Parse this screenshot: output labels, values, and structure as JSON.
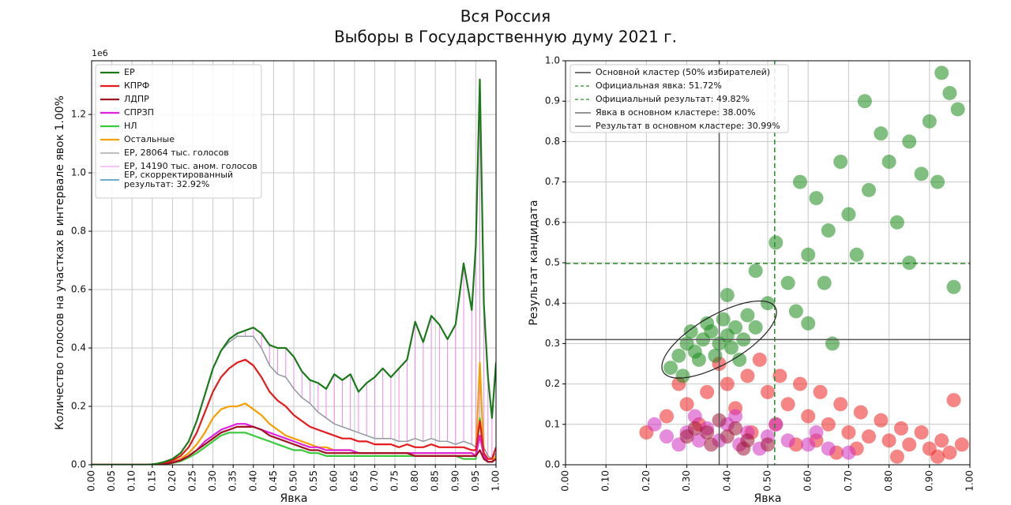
{
  "title": "Вся Россия",
  "subtitle": "Выборы в Государственную думу 2021 г.",
  "chart_data": [
    {
      "type": "line",
      "xlabel": "Явка",
      "ylabel": "Количество голосов на участках в интервале явок 1.00%",
      "offset_label": "1e6",
      "xlim": [
        0,
        1
      ],
      "ylim": [
        0,
        1.384
      ],
      "grid": true,
      "legend": "upper left",
      "xticks": [
        {
          "value": 0,
          "label": "0.00"
        },
        0.05,
        {
          "value": 0.1,
          "label": "0.10"
        },
        0.15,
        {
          "value": 0.2,
          "label": "0.20"
        },
        0.25,
        {
          "value": 0.3,
          "label": "0.30"
        },
        0.35,
        {
          "value": 0.4,
          "label": "0.40"
        },
        0.45,
        {
          "value": 0.5,
          "label": "0.50"
        },
        0.55,
        {
          "value": 0.6,
          "label": "0.60"
        },
        0.65,
        {
          "value": 0.7,
          "label": "0.70"
        },
        0.75,
        {
          "value": 0.8,
          "label": "0.80"
        },
        0.85,
        {
          "value": 0.9,
          "label": "0.90"
        },
        0.95,
        {
          "value": 1,
          "label": "1.00"
        }
      ],
      "yticks": [
        {
          "value": 0,
          "label": "0.0"
        },
        0.2,
        0.4,
        0.6,
        0.8,
        {
          "value": 1,
          "label": "1.0"
        },
        1.2
      ],
      "x": [
        0,
        0.02,
        0.04,
        0.06,
        0.08,
        0.1,
        0.12,
        0.14,
        0.16,
        0.18,
        0.2,
        0.22,
        0.24,
        0.26,
        0.28,
        0.3,
        0.32,
        0.34,
        0.36,
        0.38,
        0.4,
        0.42,
        0.44,
        0.46,
        0.48,
        0.5,
        0.52,
        0.54,
        0.56,
        0.58,
        0.6,
        0.62,
        0.64,
        0.66,
        0.68,
        0.7,
        0.72,
        0.74,
        0.76,
        0.78,
        0.8,
        0.82,
        0.84,
        0.86,
        0.88,
        0.9,
        0.92,
        0.94,
        0.95,
        0.96,
        0.97,
        0.98,
        0.99,
        1.0
      ],
      "series": [
        {
          "name": "ЕР",
          "color": "#1a7a1a",
          "width": 2.2,
          "values": [
            0,
            0,
            0,
            0,
            0,
            0,
            0,
            0,
            0.003,
            0.01,
            0.02,
            0.04,
            0.08,
            0.15,
            0.24,
            0.33,
            0.39,
            0.43,
            0.45,
            0.46,
            0.47,
            0.45,
            0.41,
            0.4,
            0.4,
            0.37,
            0.32,
            0.29,
            0.28,
            0.26,
            0.31,
            0.29,
            0.31,
            0.25,
            0.28,
            0.3,
            0.33,
            0.3,
            0.33,
            0.36,
            0.49,
            0.42,
            0.51,
            0.48,
            0.43,
            0.48,
            0.69,
            0.53,
            0.75,
            1.32,
            0.55,
            0.3,
            0.16,
            0.35
          ]
        },
        {
          "name": "КПРФ",
          "color": "#e41a1c",
          "width": 2.2,
          "values": [
            0,
            0,
            0,
            0,
            0,
            0,
            0,
            0,
            0.003,
            0.008,
            0.015,
            0.03,
            0.06,
            0.11,
            0.18,
            0.25,
            0.3,
            0.33,
            0.35,
            0.36,
            0.34,
            0.3,
            0.25,
            0.22,
            0.2,
            0.17,
            0.15,
            0.13,
            0.12,
            0.11,
            0.1,
            0.09,
            0.09,
            0.08,
            0.08,
            0.07,
            0.07,
            0.07,
            0.06,
            0.07,
            0.06,
            0.06,
            0.07,
            0.06,
            0.06,
            0.06,
            0.06,
            0.05,
            0.05,
            0.15,
            0.04,
            0.02,
            0.02,
            0.06
          ]
        },
        {
          "name": "ЛДПР",
          "color": "#a01020",
          "width": 2.2,
          "values": [
            0,
            0,
            0,
            0,
            0,
            0,
            0,
            0,
            0.001,
            0.003,
            0.007,
            0.015,
            0.03,
            0.05,
            0.07,
            0.09,
            0.11,
            0.12,
            0.13,
            0.13,
            0.13,
            0.12,
            0.1,
            0.09,
            0.08,
            0.07,
            0.06,
            0.05,
            0.05,
            0.04,
            0.04,
            0.04,
            0.04,
            0.04,
            0.04,
            0.04,
            0.04,
            0.04,
            0.04,
            0.04,
            0.03,
            0.03,
            0.03,
            0.03,
            0.03,
            0.03,
            0.03,
            0.03,
            0.03,
            0.05,
            0.02,
            0.01,
            0.01,
            0.02
          ]
        },
        {
          "name": "СПРЗП",
          "color": "#e020e0",
          "width": 2.2,
          "values": [
            0,
            0,
            0,
            0,
            0,
            0,
            0,
            0,
            0.001,
            0.003,
            0.008,
            0.016,
            0.03,
            0.05,
            0.08,
            0.1,
            0.12,
            0.13,
            0.14,
            0.14,
            0.13,
            0.12,
            0.11,
            0.1,
            0.09,
            0.08,
            0.07,
            0.06,
            0.06,
            0.05,
            0.05,
            0.05,
            0.05,
            0.04,
            0.04,
            0.04,
            0.04,
            0.04,
            0.04,
            0.04,
            0.04,
            0.04,
            0.04,
            0.04,
            0.04,
            0.04,
            0.04,
            0.04,
            0.03,
            0.1,
            0.03,
            0.01,
            0.01,
            0.02
          ]
        },
        {
          "name": "НЛ",
          "color": "#3cc83c",
          "width": 2.2,
          "values": [
            0,
            0,
            0,
            0,
            0,
            0,
            0,
            0,
            0.001,
            0.002,
            0.006,
            0.012,
            0.025,
            0.04,
            0.06,
            0.08,
            0.1,
            0.11,
            0.11,
            0.11,
            0.1,
            0.09,
            0.08,
            0.07,
            0.06,
            0.05,
            0.05,
            0.04,
            0.04,
            0.03,
            0.03,
            0.03,
            0.03,
            0.03,
            0.03,
            0.03,
            0.03,
            0.03,
            0.03,
            0.03,
            0.03,
            0.03,
            0.03,
            0.03,
            0.03,
            0.03,
            0.02,
            0.02,
            0.02,
            0.16,
            0.02,
            0.01,
            0.01,
            0.02
          ]
        },
        {
          "name": "Остальные",
          "color": "#f5a000",
          "width": 2.2,
          "values": [
            0,
            0,
            0,
            0,
            0,
            0,
            0,
            0,
            0.002,
            0.005,
            0.01,
            0.02,
            0.04,
            0.07,
            0.11,
            0.16,
            0.19,
            0.2,
            0.2,
            0.21,
            0.19,
            0.17,
            0.14,
            0.12,
            0.1,
            0.09,
            0.08,
            0.07,
            0.06,
            0.06,
            0.05,
            0.05,
            0.05,
            0.04,
            0.04,
            0.04,
            0.04,
            0.04,
            0.04,
            0.04,
            0.04,
            0.04,
            0.04,
            0.04,
            0.04,
            0.04,
            0.04,
            0.04,
            0.03,
            0.35,
            0.03,
            0.01,
            0.01,
            0.03
          ]
        },
        {
          "name": "ЕР, 28064 тыс. голосов",
          "color": "#999999",
          "width": 1.3,
          "values": [
            0,
            0,
            0,
            0,
            0,
            0,
            0,
            0,
            0.003,
            0.01,
            0.02,
            0.04,
            0.08,
            0.15,
            0.24,
            0.33,
            0.39,
            0.42,
            0.44,
            0.44,
            0.44,
            0.4,
            0.34,
            0.31,
            0.3,
            0.26,
            0.23,
            0.21,
            0.18,
            0.16,
            0.14,
            0.13,
            0.12,
            0.11,
            0.1,
            0.09,
            0.09,
            0.09,
            0.08,
            0.08,
            0.09,
            0.08,
            0.09,
            0.08,
            0.08,
            0.07,
            0.08,
            0.07,
            0.06,
            0.16,
            0.06,
            0.03,
            0.02,
            0.04
          ]
        },
        {
          "name": "ЕР, 14190 тыс. аном. голосов",
          "color": "#ee88ee",
          "style": "vlines",
          "stacked_on": "ЕР, 28064 тыс. голосов",
          "values": [
            0,
            0,
            0,
            0,
            0,
            0,
            0,
            0,
            0,
            0,
            0,
            0,
            0,
            0,
            0,
            0,
            0,
            0.01,
            0.01,
            0.02,
            0.03,
            0.05,
            0.07,
            0.09,
            0.1,
            0.11,
            0.09,
            0.08,
            0.1,
            0.1,
            0.17,
            0.16,
            0.19,
            0.14,
            0.18,
            0.21,
            0.24,
            0.21,
            0.25,
            0.28,
            0.4,
            0.34,
            0.42,
            0.4,
            0.35,
            0.41,
            0.61,
            0.46,
            0.69,
            1.16,
            0.49,
            0.27,
            0.14,
            0.31
          ]
        },
        {
          "name": "ЕР, скорректированный\nрезультат: 32.92%",
          "color": "#1f77b4",
          "width": 1.3,
          "values": [
            0,
            0,
            0,
            0,
            0,
            0,
            0,
            0,
            0.003,
            0.01,
            0.02,
            0.04,
            0.08,
            0.15,
            0.24,
            0.33,
            0.39,
            0.42,
            0.44,
            0.44,
            0.44,
            0.4,
            0.34,
            0.31,
            0.3,
            0.26,
            0.23,
            0.21,
            0.18,
            0.16,
            0.14,
            0.13,
            0.12,
            0.11,
            0.1,
            0.09,
            0.09,
            0.09,
            0.08,
            0.08,
            0.09,
            0.08,
            0.09,
            0.08,
            0.08,
            0.07,
            0.08,
            0.07,
            0.06,
            0.16,
            0.06,
            0.03,
            0.02,
            0.04
          ]
        }
      ]
    },
    {
      "type": "scatter",
      "xlabel": "Явка",
      "ylabel": "Результат кандидата",
      "xlim": [
        0,
        1
      ],
      "ylim": [
        0,
        1
      ],
      "grid": true,
      "legend": "upper left",
      "xticks": [
        {
          "value": 0,
          "label": "0.00"
        },
        {
          "value": 0.1,
          "label": "0.10"
        },
        {
          "value": 0.2,
          "label": "0.20"
        },
        {
          "value": 0.3,
          "label": "0.30"
        },
        {
          "value": 0.4,
          "label": "0.40"
        },
        {
          "value": 0.5,
          "label": "0.50"
        },
        {
          "value": 0.6,
          "label": "0.60"
        },
        {
          "value": 0.7,
          "label": "0.70"
        },
        {
          "value": 0.8,
          "label": "0.80"
        },
        {
          "value": 0.9,
          "label": "0.90"
        },
        {
          "value": 1,
          "label": "1.00"
        }
      ],
      "yticks": [
        {
          "value": 0,
          "label": "0.0"
        },
        0.1,
        0.2,
        0.3,
        0.4,
        0.5,
        0.6,
        0.7,
        0.8,
        0.9,
        {
          "value": 1,
          "label": "1.0"
        }
      ],
      "series": [
        {
          "color": "#ee2020",
          "x": [
            0.3,
            0.35,
            0.4,
            0.45,
            0.5,
            0.55,
            0.6,
            0.65,
            0.7,
            0.75,
            0.8,
            0.85,
            0.9,
            0.95,
            0.98,
            0.25,
            0.28,
            0.38,
            0.48,
            0.53,
            0.58,
            0.63,
            0.68,
            0.73,
            0.78,
            0.83,
            0.88,
            0.93,
            0.42,
            0.52,
            0.62,
            0.72,
            0.82,
            0.92,
            0.2,
            0.33,
            0.46,
            0.57,
            0.67,
            0.96
          ],
          "values": [
            0.15,
            0.18,
            0.2,
            0.22,
            0.18,
            0.15,
            0.12,
            0.1,
            0.08,
            0.07,
            0.06,
            0.05,
            0.04,
            0.03,
            0.05,
            0.12,
            0.2,
            0.25,
            0.26,
            0.22,
            0.2,
            0.18,
            0.15,
            0.13,
            0.11,
            0.09,
            0.08,
            0.06,
            0.14,
            0.1,
            0.06,
            0.04,
            0.02,
            0.02,
            0.08,
            0.1,
            0.08,
            0.05,
            0.03,
            0.16
          ]
        },
        {
          "color": "#d030c0",
          "x": [
            0.25,
            0.3,
            0.35,
            0.4,
            0.45,
            0.5,
            0.55,
            0.6,
            0.65,
            0.7,
            0.28,
            0.33,
            0.38,
            0.43,
            0.48,
            0.22,
            0.32,
            0.42,
            0.52,
            0.62
          ],
          "values": [
            0.07,
            0.08,
            0.09,
            0.1,
            0.08,
            0.07,
            0.06,
            0.05,
            0.04,
            0.03,
            0.05,
            0.06,
            0.06,
            0.05,
            0.04,
            0.1,
            0.12,
            0.12,
            0.1,
            0.08
          ]
        },
        {
          "color": "#a01838",
          "x": [
            0.3,
            0.35,
            0.4,
            0.45,
            0.36,
            0.42,
            0.5,
            0.32,
            0.38,
            0.44
          ],
          "values": [
            0.07,
            0.08,
            0.07,
            0.06,
            0.05,
            0.09,
            0.05,
            0.09,
            0.11,
            0.04
          ]
        },
        {
          "color": "#1a8a1a",
          "x": [
            0.3,
            0.32,
            0.34,
            0.36,
            0.38,
            0.4,
            0.42,
            0.33,
            0.37,
            0.41,
            0.44,
            0.28,
            0.31,
            0.35,
            0.39,
            0.45,
            0.47,
            0.26,
            0.29,
            0.43,
            0.5,
            0.55,
            0.6,
            0.65,
            0.7,
            0.75,
            0.8,
            0.85,
            0.9,
            0.95,
            0.93,
            0.88,
            0.78,
            0.68,
            0.62,
            0.57,
            0.64,
            0.72,
            0.82,
            0.92,
            0.97,
            0.52,
            0.47,
            0.58,
            0.74,
            0.6,
            0.85,
            0.96,
            0.4,
            0.66
          ],
          "values": [
            0.3,
            0.28,
            0.31,
            0.33,
            0.3,
            0.32,
            0.34,
            0.26,
            0.27,
            0.29,
            0.31,
            0.27,
            0.33,
            0.35,
            0.36,
            0.37,
            0.34,
            0.24,
            0.22,
            0.26,
            0.4,
            0.45,
            0.52,
            0.58,
            0.62,
            0.68,
            0.75,
            0.8,
            0.85,
            0.92,
            0.97,
            0.72,
            0.82,
            0.75,
            0.66,
            0.38,
            0.45,
            0.52,
            0.6,
            0.7,
            0.88,
            0.55,
            0.48,
            0.7,
            0.9,
            0.35,
            0.5,
            0.44,
            0.42,
            0.3
          ]
        }
      ],
      "ellipse": {
        "label": "Основной кластер (50% избирателей)",
        "center": [
          0.38,
          0.31
        ],
        "semi_axes": [
          0.16,
          0.06
        ],
        "angle": 30,
        "color": "#222222"
      },
      "lines": [
        {
          "label": "Официальная явка: 51.72%",
          "orientation": "vertical",
          "value": 0.5172,
          "color": "#2a8a2a",
          "style": "dashed"
        },
        {
          "label": "Официальный результат: 49.82%",
          "orientation": "horizontal",
          "value": 0.4982,
          "color": "#2a8a2a",
          "style": "dashed"
        },
        {
          "label": "Явка в основном кластере: 38.00%",
          "orientation": "vertical",
          "value": 0.38,
          "color": "#555555",
          "style": "solid"
        },
        {
          "label": "Результат в основном кластере: 30.99%",
          "orientation": "horizontal",
          "value": 0.3099,
          "color": "#555555",
          "style": "solid"
        }
      ]
    }
  ]
}
